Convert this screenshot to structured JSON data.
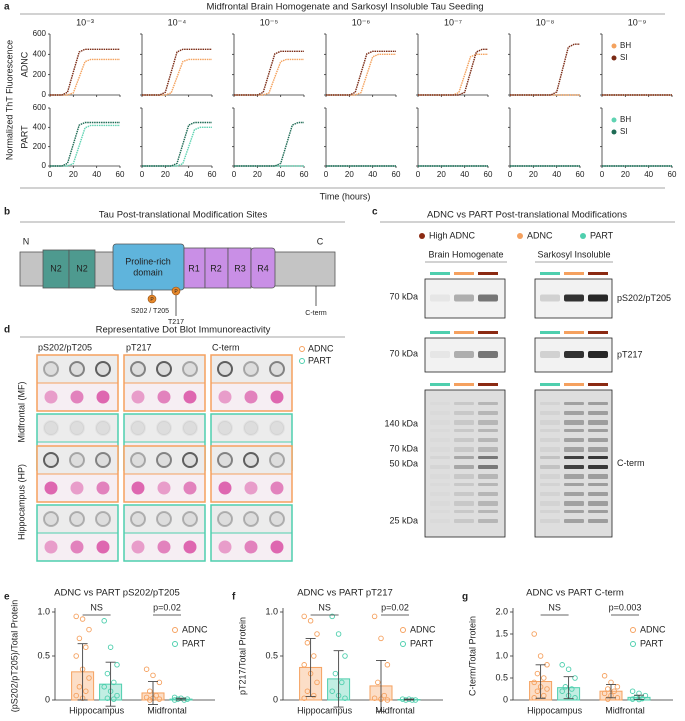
{
  "panel_labels": [
    "a",
    "b",
    "c",
    "d",
    "e",
    "f",
    "g"
  ],
  "chart_data": [
    {
      "type": "line-grid",
      "title": "Midfrontal Brain Homogenate and Sarkosyl Insoluble Tau Seeding",
      "y_label": "Normalized ThT Fluorescence",
      "x_label": "Time (hours)",
      "columns": [
        "10⁻³",
        "10⁻⁴",
        "10⁻⁵",
        "10⁻⁶",
        "10⁻⁷",
        "10⁻⁸",
        "10⁻⁹"
      ],
      "x": [
        0,
        5,
        10,
        15,
        20,
        25,
        30,
        35,
        40,
        45,
        50,
        55,
        60
      ],
      "xlim": [
        0,
        60
      ],
      "xticks": [
        0,
        20,
        40,
        60
      ],
      "ylim": [
        0,
        600
      ],
      "yticks": [
        0,
        200,
        400,
        600
      ],
      "rows": [
        {
          "label": "ADNC",
          "series": [
            {
              "name": "BH",
              "color": "#f4a25e",
              "values": [
                [
                  0,
                  0,
                  0,
                  0,
                  21,
                  175,
                  329,
                  350,
                  350,
                  350,
                  350,
                  350,
                  350
                ],
                [
                  0,
                  0,
                  0,
                  0,
                  0,
                  21,
                  175,
                  329,
                  350,
                  350,
                  350,
                  350,
                  350
                ],
                [
                  0,
                  0,
                  0,
                  0,
                  0,
                  0,
                  21,
                  175,
                  329,
                  350,
                  350,
                  350,
                  350
                ],
                [
                  0,
                  0,
                  0,
                  0,
                  0,
                  0,
                  24,
                  200,
                  376,
                  400,
                  400,
                  400,
                  400
                ],
                [
                  0,
                  0,
                  0,
                  0,
                  0,
                  0,
                  0,
                  24,
                  200,
                  376,
                  400,
                  400,
                  400
                ],
                [
                  0,
                  0,
                  0,
                  0,
                  0,
                  0,
                  0,
                  0,
                  0,
                  0,
                  0,
                  0,
                  0
                ],
                [
                  0,
                  0,
                  0,
                  0,
                  0,
                  0,
                  0,
                  0,
                  0,
                  0,
                  0,
                  0,
                  0
                ]
              ]
            },
            {
              "name": "SI",
              "color": "#7a2a14",
              "values": [
                [
                  0,
                  0,
                  0,
                  27,
                  225,
                  423,
                  450,
                  450,
                  450,
                  450,
                  450,
                  450,
                  450
                ],
                [
                  0,
                  0,
                  0,
                  0,
                  27,
                  225,
                  423,
                  450,
                  450,
                  450,
                  450,
                  450,
                  450
                ],
                [
                  0,
                  0,
                  0,
                  0,
                  0,
                  26,
                  215,
                  404,
                  430,
                  430,
                  430,
                  430,
                  430
                ],
                [
                  0,
                  0,
                  0,
                  0,
                  0,
                  26,
                  215,
                  404,
                  430,
                  430,
                  430,
                  430,
                  430
                ],
                [
                  0,
                  0,
                  0,
                  0,
                  0,
                  0,
                  0,
                  0,
                  27,
                  225,
                  423,
                  450,
                  450
                ],
                [
                  0,
                  0,
                  0,
                  0,
                  0,
                  0,
                  0,
                  0,
                  30,
                  250,
                  470,
                  500,
                  500
                ],
                [
                  0,
                  0,
                  0,
                  0,
                  0,
                  0,
                  0,
                  0,
                  0,
                  0,
                  0,
                  0,
                  0
                ]
              ]
            }
          ]
        },
        {
          "label": "PART",
          "series": [
            {
              "name": "BH",
              "color": "#5fd3b2",
              "values": [
                [
                  0,
                  0,
                  0,
                  0,
                  25,
                  210,
                  395,
                  420,
                  420,
                  420,
                  420,
                  420,
                  420
                ],
                [
                  0,
                  0,
                  0,
                  0,
                  0,
                  0,
                  0,
                  24,
                  200,
                  376,
                  400,
                  400,
                  400
                ],
                [
                  0,
                  0,
                  0,
                  0,
                  0,
                  0,
                  0,
                  0,
                  0,
                  0,
                  0,
                  0,
                  0
                ],
                [
                  0,
                  0,
                  0,
                  0,
                  0,
                  0,
                  0,
                  0,
                  0,
                  0,
                  0,
                  0,
                  0
                ],
                [
                  0,
                  0,
                  0,
                  0,
                  0,
                  0,
                  0,
                  0,
                  0,
                  0,
                  0,
                  0,
                  0
                ],
                [
                  0,
                  0,
                  0,
                  0,
                  0,
                  0,
                  0,
                  0,
                  0,
                  0,
                  0,
                  0,
                  0
                ],
                [
                  0,
                  0,
                  0,
                  0,
                  0,
                  0,
                  0,
                  0,
                  0,
                  0,
                  0,
                  0,
                  0
                ]
              ]
            },
            {
              "name": "SI",
              "color": "#1f6b55",
              "values": [
                [
                  0,
                  0,
                  0,
                  27,
                  225,
                  423,
                  450,
                  450,
                  450,
                  450,
                  450,
                  450,
                  450
                ],
                [
                  0,
                  0,
                  0,
                  0,
                  0,
                  0,
                  27,
                  225,
                  423,
                  450,
                  450,
                  450,
                  450
                ],
                [
                  0,
                  0,
                  0,
                  0,
                  0,
                  0,
                  0,
                  0,
                  27,
                  225,
                  423,
                  450,
                  450
                ],
                [
                  0,
                  0,
                  0,
                  0,
                  0,
                  0,
                  0,
                  0,
                  0,
                  0,
                  0,
                  0,
                  0
                ],
                [
                  0,
                  0,
                  0,
                  0,
                  0,
                  0,
                  0,
                  0,
                  0,
                  0,
                  0,
                  0,
                  0
                ],
                [
                  0,
                  0,
                  0,
                  0,
                  0,
                  0,
                  0,
                  0,
                  0,
                  0,
                  0,
                  0,
                  0
                ],
                [
                  0,
                  0,
                  0,
                  0,
                  0,
                  0,
                  0,
                  0,
                  0,
                  0,
                  0,
                  0,
                  0
                ]
              ]
            }
          ]
        }
      ]
    },
    {
      "type": "bar",
      "title": "ADNC vs PART pS202/pT205",
      "y_label": "(pS202/pT205)/Total Protein",
      "categories": [
        "Hippocampus",
        "Midfrontal"
      ],
      "ylim": [
        0,
        1
      ],
      "yticks": [
        0,
        0.5,
        {
          "value": 1,
          "label": "1.0"
        }
      ],
      "annotations": [
        "NS",
        "p=0.02"
      ],
      "series": [
        {
          "name": "ADNC",
          "color": "#f5a15f",
          "values": [
            0.32,
            0.08
          ],
          "errors": [
            0.32,
            0.13
          ],
          "points": [
            [
              0.95,
              0.92,
              0.8,
              0.7,
              0.6,
              0.5,
              0.35,
              0.25,
              0.15,
              0.1,
              0.05,
              0.02
            ],
            [
              0.35,
              0.28,
              0.2,
              0.1,
              0.05,
              0.03,
              0.02,
              0.01,
              0
            ]
          ]
        },
        {
          "name": "PART",
          "color": "#4fcfae",
          "values": [
            0.18,
            0.01
          ],
          "errors": [
            0.25,
            0.01
          ],
          "points": [
            [
              0.9,
              0.6,
              0.4,
              0.3,
              0.2,
              0.15,
              0.1,
              0.05,
              0.02,
              0.01
            ],
            [
              0.03,
              0.02,
              0.01,
              0.01,
              0,
              0
            ]
          ]
        }
      ]
    },
    {
      "type": "bar",
      "title": "ADNC vs PART pT217",
      "y_label": "pT217/Total Protein",
      "categories": [
        "Hippocampus",
        "Midfrontal"
      ],
      "ylim": [
        0,
        1
      ],
      "yticks": [
        0,
        0.5,
        {
          "value": 1,
          "label": "1.0"
        }
      ],
      "annotations": [
        "NS",
        "p=0.02"
      ],
      "series": [
        {
          "name": "ADNC",
          "color": "#f5a15f",
          "values": [
            0.37,
            0.16
          ],
          "errors": [
            0.33,
            0.29
          ],
          "points": [
            [
              0.95,
              0.9,
              0.75,
              0.65,
              0.5,
              0.4,
              0.3,
              0.2,
              0.1,
              0.05,
              0.02
            ],
            [
              0.95,
              0.7,
              0.4,
              0.2,
              0.05,
              0.02,
              0.01,
              0
            ]
          ]
        },
        {
          "name": "PART",
          "color": "#4fcfae",
          "values": [
            0.24,
            0.005
          ],
          "errors": [
            0.32,
            0.005
          ],
          "points": [
            [
              0.95,
              0.75,
              0.5,
              0.3,
              0.2,
              0.1,
              0.05,
              0.02
            ],
            [
              0.01,
              0.01,
              0,
              0,
              0
            ]
          ]
        }
      ]
    },
    {
      "type": "bar",
      "title": "ADNC vs PART C-term",
      "y_label": "C-term/Total Protein",
      "categories": [
        "Hippocampus",
        "Midfrontal"
      ],
      "ylim": [
        0,
        2
      ],
      "yticks": [
        0,
        0.5,
        {
          "value": 1,
          "label": "1.0"
        },
        1.5,
        {
          "value": 2,
          "label": "2.0"
        }
      ],
      "annotations": [
        "NS",
        "p=0.003"
      ],
      "series": [
        {
          "name": "ADNC",
          "color": "#f5a15f",
          "values": [
            0.42,
            0.2
          ],
          "errors": [
            0.38,
            0.15
          ],
          "points": [
            [
              1.5,
              1,
              0.8,
              0.6,
              0.5,
              0.4,
              0.3,
              0.25,
              0.2,
              0.1,
              0.05
            ],
            [
              0.55,
              0.4,
              0.3,
              0.25,
              0.2,
              0.15,
              0.1,
              0.05,
              0.02
            ]
          ]
        },
        {
          "name": "PART",
          "color": "#4fcfae",
          "values": [
            0.28,
            0.06
          ],
          "errors": [
            0.25,
            0.05
          ],
          "points": [
            [
              0.8,
              0.7,
              0.5,
              0.3,
              0.25,
              0.2,
              0.1,
              0.05
            ],
            [
              0.2,
              0.15,
              0.1,
              0.05,
              0.03,
              0.02,
              0.01
            ]
          ]
        }
      ]
    }
  ],
  "tau_diagram": {
    "title": "Tau Post-translational Modification Sites",
    "n_label": "N",
    "c_label": "C",
    "domains": [
      "N2",
      "N2",
      "R1",
      "R2",
      "R3",
      "R4"
    ],
    "proline_rich": [
      "Proline-rich",
      "domain"
    ],
    "sites": [
      "S202 / T205",
      "T217"
    ],
    "c_term": "C-term",
    "phospho": "P"
  },
  "western_blot": {
    "title": "ADNC vs PART Post-translational Modifications",
    "legend": [
      "High ADNC",
      "ADNC",
      "PART"
    ],
    "colors": [
      "#8b2a12",
      "#f5a15f",
      "#4fcfae"
    ],
    "fractions": [
      "Brain Homogenate",
      "Sarkosyl Insoluble"
    ],
    "rows": [
      {
        "label": "pS202/pT205",
        "markers": [
          "70 kDa"
        ]
      },
      {
        "label": "pT217",
        "markers": [
          "70 kDa"
        ]
      },
      {
        "label": "C-term",
        "markers": [
          "140 kDa",
          "70 kDa",
          "50 kDa",
          "25 kDa"
        ]
      }
    ]
  },
  "dot_blot": {
    "title": "Representative Dot Blot Immunoreactivity",
    "columns": [
      "pS202/pT205",
      "pT217",
      "C-term"
    ],
    "legend": [
      "ADNC",
      "PART"
    ],
    "regions": [
      "Midfrontal (MF)",
      "Hippocampus (HP)"
    ]
  }
}
